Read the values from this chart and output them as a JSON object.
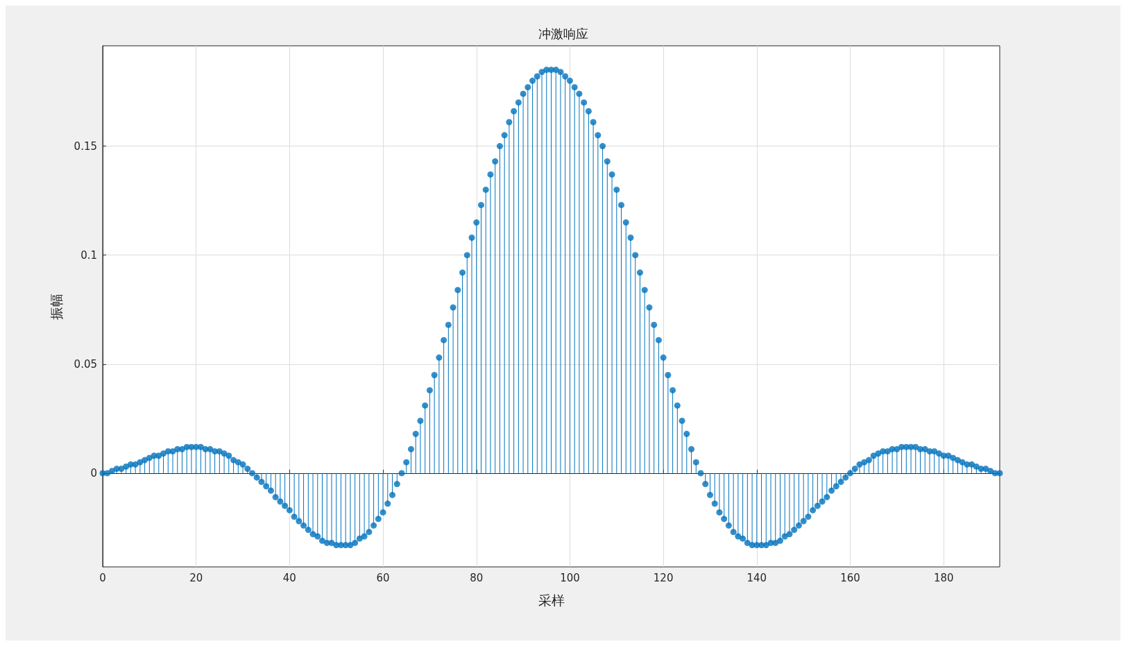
{
  "chart_data": {
    "type": "lollipop",
    "title": "冲激响应",
    "xlabel": "采样",
    "ylabel": "振幅",
    "x": [
      0,
      1,
      2,
      3,
      4,
      5,
      6,
      7,
      8,
      9,
      10,
      11,
      12,
      13,
      14,
      15,
      16,
      17,
      18,
      19,
      20,
      21,
      22,
      23,
      24,
      25,
      26,
      27,
      28,
      29,
      30,
      31,
      32,
      33,
      34,
      35,
      36,
      37,
      38,
      39,
      40,
      41,
      42,
      43,
      44,
      45,
      46,
      47,
      48,
      49,
      50,
      51,
      52,
      53,
      54,
      55,
      56,
      57,
      58,
      59,
      60,
      61,
      62,
      63,
      64,
      65,
      66,
      67,
      68,
      69,
      70,
      71,
      72,
      73,
      74,
      75,
      76,
      77,
      78,
      79,
      80,
      81,
      82,
      83,
      84,
      85,
      86,
      87,
      88,
      89,
      90,
      91,
      92,
      93,
      94,
      95,
      96,
      97,
      98,
      99,
      100,
      101,
      102,
      103,
      104,
      105,
      106,
      107,
      108,
      109,
      110,
      111,
      112,
      113,
      114,
      115,
      116,
      117,
      118,
      119,
      120,
      121,
      122,
      123,
      124,
      125,
      126,
      127,
      128,
      129,
      130,
      131,
      132,
      133,
      134,
      135,
      136,
      137,
      138,
      139,
      140,
      141,
      142,
      143,
      144,
      145,
      146,
      147,
      148,
      149,
      150,
      151,
      152,
      153,
      154,
      155,
      156,
      157,
      158,
      159,
      160,
      161,
      162,
      163,
      164,
      165,
      166,
      167,
      168,
      169,
      170,
      171,
      172,
      173,
      174,
      175,
      176,
      177,
      178,
      179,
      180,
      181,
      182,
      183,
      184,
      185,
      186,
      187,
      188,
      189,
      190,
      191,
      192
    ],
    "values": [
      0,
      0,
      0.001,
      0.002,
      0.002,
      0.003,
      0.004,
      0.004,
      0.005,
      0.006,
      0.007,
      0.008,
      0.008,
      0.009,
      0.01,
      0.01,
      0.011,
      0.011,
      0.012,
      0.012,
      0.012,
      0.012,
      0.011,
      0.011,
      0.01,
      0.01,
      0.009,
      0.008,
      0.006,
      0.005,
      0.004,
      0.002,
      0,
      -0.002,
      -0.004,
      -0.006,
      -0.008,
      -0.011,
      -0.013,
      -0.015,
      -0.017,
      -0.02,
      -0.022,
      -0.024,
      -0.026,
      -0.028,
      -0.029,
      -0.031,
      -0.032,
      -0.032,
      -0.033,
      -0.033,
      -0.033,
      -0.033,
      -0.032,
      -0.03,
      -0.029,
      -0.027,
      -0.024,
      -0.021,
      -0.018,
      -0.014,
      -0.01,
      -0.005,
      0,
      0.005,
      0.011,
      0.018,
      0.024,
      0.031,
      0.038,
      0.045,
      0.053,
      0.061,
      0.068,
      0.076,
      0.084,
      0.092,
      0.1,
      0.108,
      0.115,
      0.123,
      0.13,
      0.137,
      0.143,
      0.15,
      0.155,
      0.161,
      0.166,
      0.17,
      0.174,
      0.177,
      0.18,
      0.182,
      0.184,
      0.185,
      0.185,
      0.185,
      0.184,
      0.182,
      0.18,
      0.177,
      0.174,
      0.17,
      0.166,
      0.161,
      0.155,
      0.15,
      0.143,
      0.137,
      0.13,
      0.123,
      0.115,
      0.108,
      0.1,
      0.092,
      0.084,
      0.076,
      0.068,
      0.061,
      0.053,
      0.045,
      0.038,
      0.031,
      0.024,
      0.018,
      0.011,
      0.005,
      0,
      -0.005,
      -0.01,
      -0.014,
      -0.018,
      -0.021,
      -0.024,
      -0.027,
      -0.029,
      -0.03,
      -0.032,
      -0.033,
      -0.033,
      -0.033,
      -0.033,
      -0.032,
      -0.032,
      -0.031,
      -0.029,
      -0.028,
      -0.026,
      -0.024,
      -0.022,
      -0.02,
      -0.017,
      -0.015,
      -0.013,
      -0.011,
      -0.008,
      -0.006,
      -0.004,
      -0.002,
      0,
      0.002,
      0.004,
      0.005,
      0.006,
      0.008,
      0.009,
      0.01,
      0.01,
      0.011,
      0.011,
      0.012,
      0.012,
      0.012,
      0.012,
      0.011,
      0.011,
      0.01,
      0.01,
      0.009,
      0.008,
      0.008,
      0.007,
      0.006,
      0.005,
      0.004,
      0.004,
      0.003,
      0.002,
      0.002,
      0.001,
      0,
      0
    ],
    "color": "#0072bd",
    "marker": "circle",
    "grid": true,
    "xlim": [
      0,
      192
    ],
    "xticks": [
      0,
      20,
      40,
      60,
      80,
      100,
      120,
      140,
      160,
      180
    ],
    "ylim": [
      -0.043,
      0.196
    ],
    "yticks": [
      0,
      0.05,
      0.1,
      0.15
    ]
  }
}
